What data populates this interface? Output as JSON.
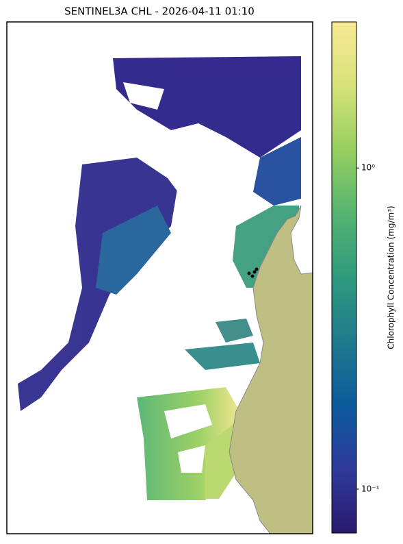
{
  "chart_data": {
    "type": "map",
    "title": "SENTINEL3A CHL - 2026-04-11 01:10",
    "colorbar": {
      "label": "Chlorophyll Concentration (mg/m³)",
      "scale": "log",
      "lim": [
        0.073,
        2.85
      ],
      "ticks": [
        {
          "value": 1,
          "label": "10⁰"
        },
        {
          "value": 0.1,
          "label": "10⁻¹"
        }
      ],
      "colormap": [
        "#2a1a6e",
        "#2e3a9a",
        "#0b5a9c",
        "#1f7a8c",
        "#2f9a7e",
        "#55b470",
        "#97cf5f",
        "#d6e27a",
        "#f8e995"
      ]
    }
  }
}
